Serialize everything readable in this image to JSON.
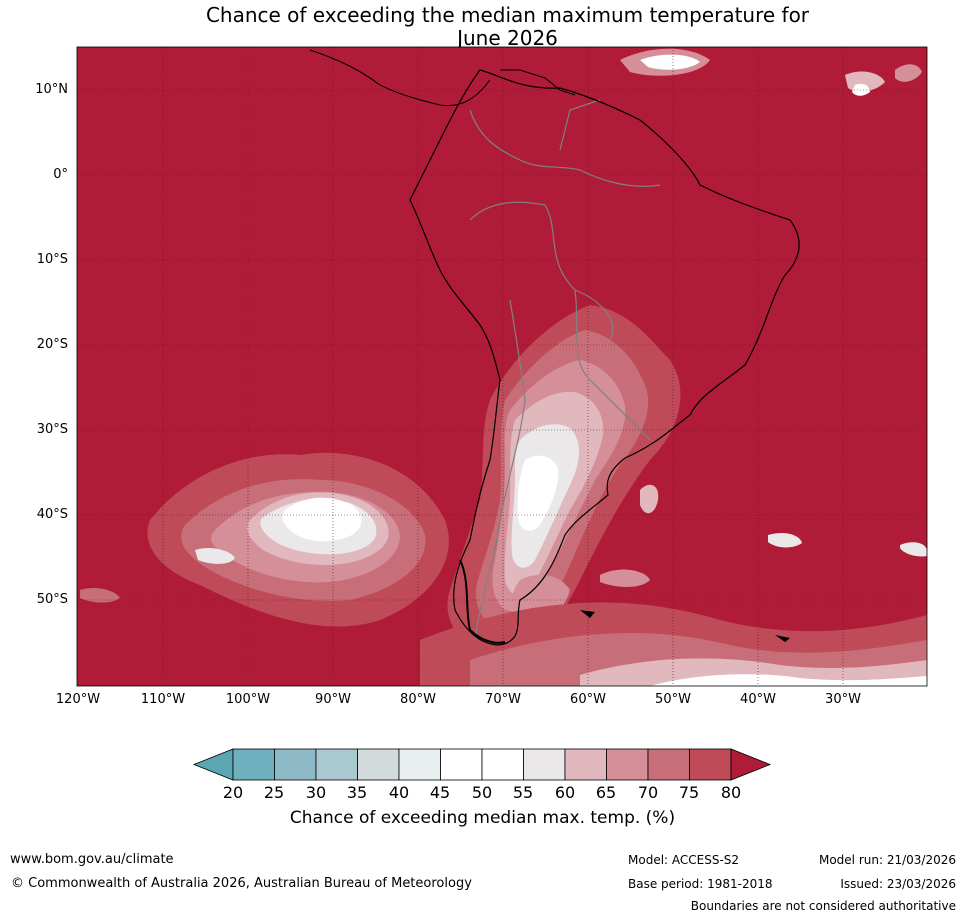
{
  "title_line1": "Chance of exceeding the median maximum temperature for",
  "title_line2": "June 2026",
  "lat_labels": [
    "10°N",
    "0°",
    "10°S",
    "20°S",
    "30°S",
    "40°S",
    "50°S"
  ],
  "lon_labels": [
    "120°W",
    "110°W",
    "100°W",
    "90°W",
    "80°W",
    "70°W",
    "60°W",
    "50°W",
    "40°W",
    "30°W"
  ],
  "colorbar": {
    "ticks": [
      "20",
      "25",
      "30",
      "35",
      "40",
      "45",
      "50",
      "55",
      "60",
      "65",
      "70",
      "75",
      "80"
    ],
    "colors": [
      "#5aa6b4",
      "#6fb0bf",
      "#8db9c6",
      "#a9c8cf",
      "#d2dadc",
      "#e9eff1",
      "#ffffff",
      "#ffffff",
      "#ebe8e9",
      "#e0b8bd",
      "#d48f98",
      "#c86e79",
      "#bf4b58",
      "#b01c38"
    ],
    "label": "Chance of exceeding median max. temp. (%)"
  },
  "colors": {
    "above80": "#b01c38",
    "land_border": "#000000",
    "country_border": "#808080",
    "grid": "#5a1420"
  },
  "footer": {
    "url": "www.bom.gov.au/climate",
    "copyright": "© Commonwealth of Australia 2026, Australian Bureau of Meteorology",
    "model": "Model: ACCESS-S2",
    "base_period": "Base period: 1981-2018",
    "model_run": "Model run: 21/03/2026",
    "issued": "Issued: 23/03/2026",
    "disclaimer": "Boundaries are not considered authoritative"
  }
}
